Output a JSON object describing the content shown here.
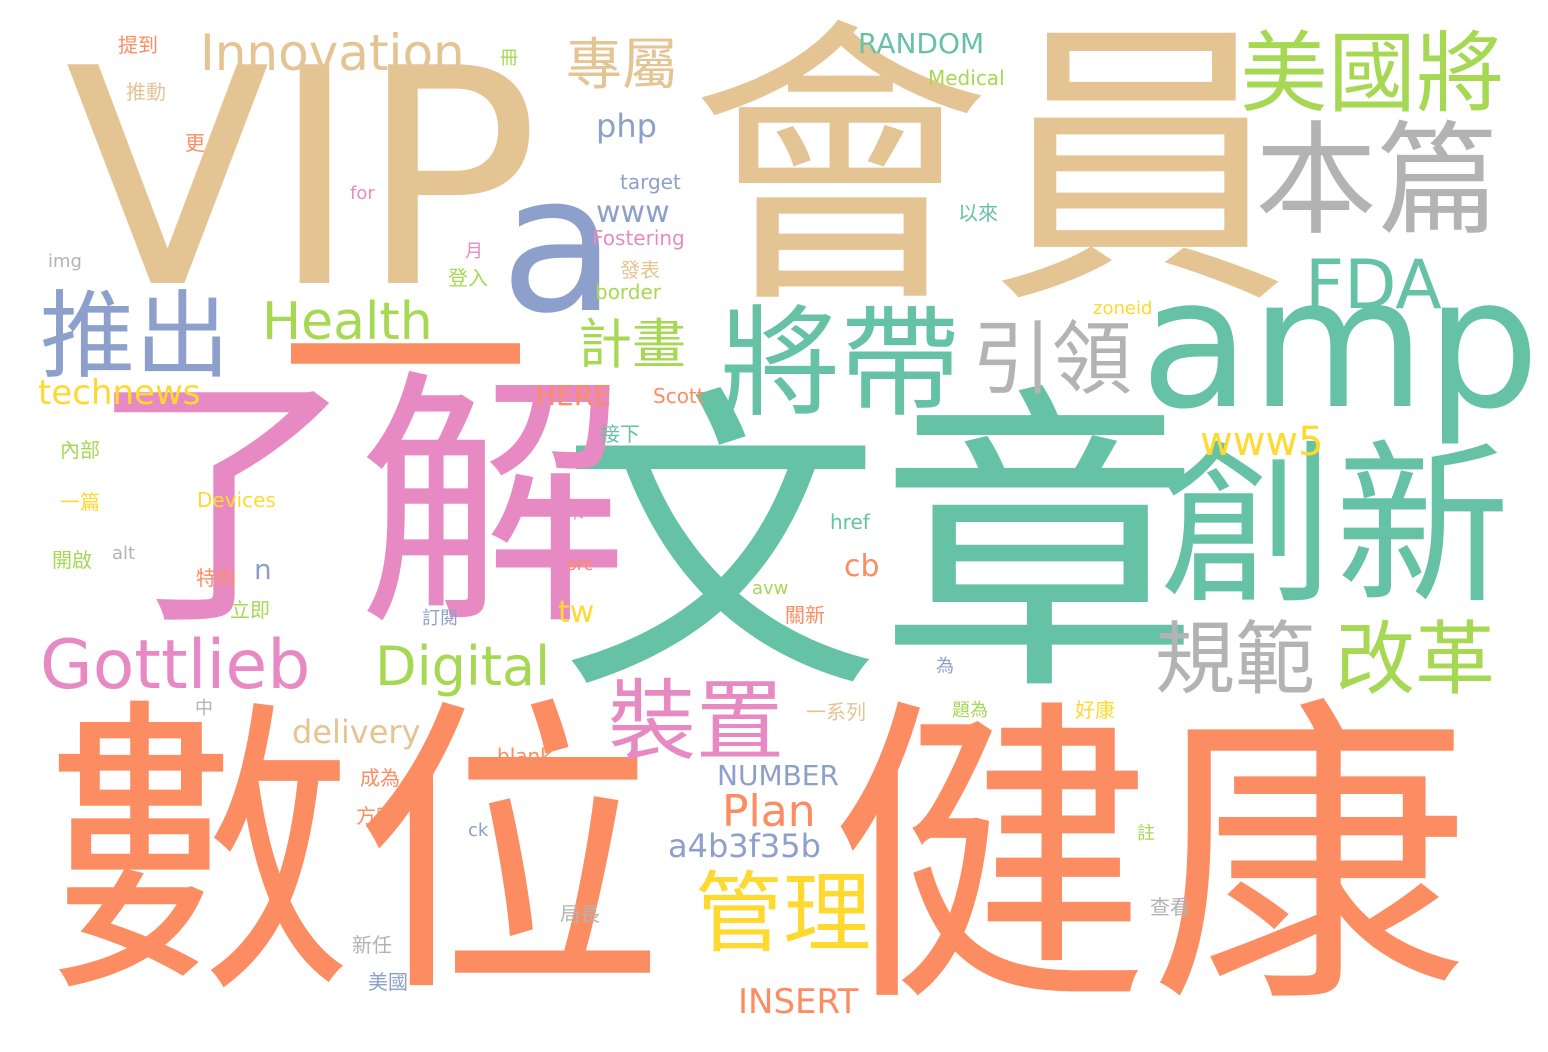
{
  "words": [
    {
      "text": "文章",
      "color": "green"
    },
    {
      "text": "數位",
      "color": "orange"
    },
    {
      "text": "健康",
      "color": "orange"
    },
    {
      "text": "會員",
      "color": "tan"
    },
    {
      "text": "VIP",
      "color": "tan"
    },
    {
      "text": "了解",
      "color": "pink"
    },
    {
      "text": "一",
      "color": "orange"
    },
    {
      "text": "amp",
      "color": "green"
    },
    {
      "text": "a",
      "color": "blue"
    },
    {
      "text": "創新",
      "color": "green"
    },
    {
      "text": "將帶",
      "color": "green"
    },
    {
      "text": "本篇",
      "color": "gray"
    },
    {
      "text": "美國將",
      "color": "lime"
    },
    {
      "text": "推出",
      "color": "blue"
    },
    {
      "text": "FDA",
      "color": "green"
    },
    {
      "text": "引領",
      "color": "gray"
    },
    {
      "text": "規範",
      "color": "gray"
    },
    {
      "text": "改革",
      "color": "lime"
    },
    {
      "text": "Gottlieb",
      "color": "pink"
    },
    {
      "text": "Digital",
      "color": "lime"
    },
    {
      "text": "裝置",
      "color": "pink"
    },
    {
      "text": "管理",
      "color": "yellow"
    },
    {
      "text": "Innovation",
      "color": "tan"
    },
    {
      "text": "專屬",
      "color": "tan"
    },
    {
      "text": "Health",
      "color": "lime"
    },
    {
      "text": "計畫",
      "color": "lime"
    },
    {
      "text": "www5",
      "color": "yellow"
    },
    {
      "text": "Plan",
      "color": "orange"
    },
    {
      "text": "technews",
      "color": "yellow"
    },
    {
      "text": "delivery",
      "color": "tan"
    },
    {
      "text": "a4b3f35b",
      "color": "blue"
    },
    {
      "text": "INSERT",
      "color": "orange"
    },
    {
      "text": "NUMBER",
      "color": "blue"
    },
    {
      "text": "RANDOM",
      "color": "green"
    },
    {
      "text": "php",
      "color": "blue"
    },
    {
      "text": "www",
      "color": "blue"
    },
    {
      "text": "HERE",
      "color": "orange"
    },
    {
      "text": "cb",
      "color": "orange"
    },
    {
      "text": "tw",
      "color": "yellow"
    },
    {
      "text": "n",
      "color": "blue"
    },
    {
      "text": "Medical",
      "color": "lime"
    },
    {
      "text": "target",
      "color": "blue"
    },
    {
      "text": "Fostering",
      "color": "pink"
    },
    {
      "text": "border",
      "color": "lime"
    },
    {
      "text": "zoneid",
      "color": "yellow"
    },
    {
      "text": "Scott",
      "color": "orange"
    },
    {
      "text": "Devices",
      "color": "yellow"
    },
    {
      "text": "href",
      "color": "green"
    },
    {
      "text": "blank",
      "color": "orange"
    },
    {
      "text": "avw",
      "color": "lime"
    },
    {
      "text": "src",
      "color": "orange"
    },
    {
      "text": "ck",
      "color": "blue"
    },
    {
      "text": "for",
      "color": "pink"
    },
    {
      "text": "img",
      "color": "gray"
    },
    {
      "text": "alt",
      "color": "gray"
    },
    {
      "text": "提到",
      "color": "orange"
    },
    {
      "text": "推動",
      "color": "tan"
    },
    {
      "text": "更",
      "color": "orange"
    },
    {
      "text": "冊",
      "color": "lime"
    },
    {
      "text": "以來",
      "color": "green"
    },
    {
      "text": "月",
      "color": "pink"
    },
    {
      "text": "發表",
      "color": "tan"
    },
    {
      "text": "登入",
      "color": "lime"
    },
    {
      "text": "接下",
      "color": "green"
    },
    {
      "text": "內部",
      "color": "lime"
    },
    {
      "text": "一篇",
      "color": "yellow"
    },
    {
      "text": "來",
      "color": "pink"
    },
    {
      "text": "開啟",
      "color": "lime"
    },
    {
      "text": "特別",
      "color": "orange"
    },
    {
      "text": "立即",
      "color": "lime"
    },
    {
      "text": "訂閱",
      "color": "blue"
    },
    {
      "text": "關新",
      "color": "orange"
    },
    {
      "text": "為",
      "color": "blue"
    },
    {
      "text": "中",
      "color": "gray"
    },
    {
      "text": "一系列",
      "color": "tan"
    },
    {
      "text": "題為",
      "color": "lime"
    },
    {
      "text": "好康",
      "color": "yellow"
    },
    {
      "text": "成為",
      "color": "orange"
    },
    {
      "text": "方案",
      "color": "orange"
    },
    {
      "text": "註",
      "color": "lime"
    },
    {
      "text": "局長",
      "color": "gray"
    },
    {
      "text": "查看",
      "color": "gray"
    },
    {
      "text": "新任",
      "color": "gray"
    },
    {
      "text": "美國",
      "color": "blue"
    }
  ]
}
